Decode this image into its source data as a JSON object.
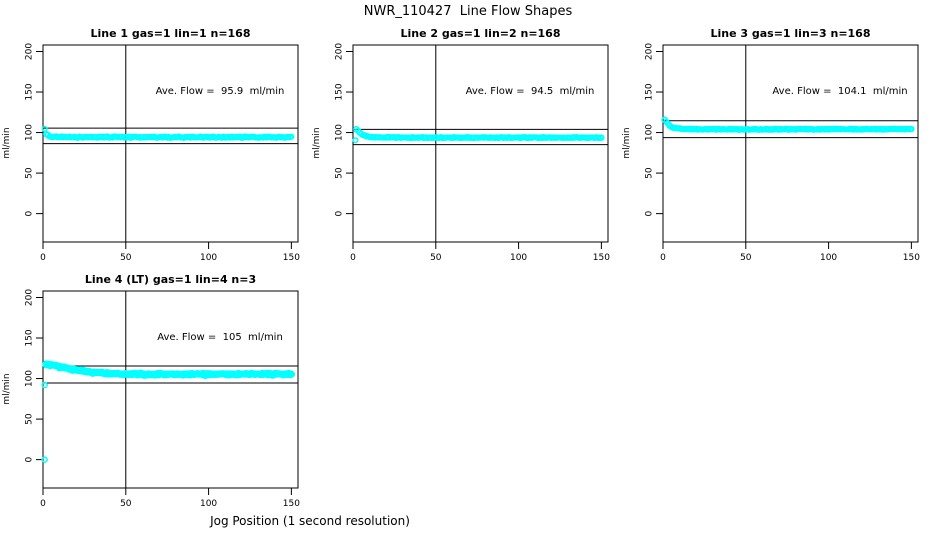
{
  "title": "NWR_110427  Line Flow Shapes",
  "xlabel": "Jog Position (1 second resolution)",
  "colors": {
    "points": "#00FFFF",
    "axis": "#000000",
    "background": "#FFFFFF"
  },
  "chart_data": [
    {
      "type": "scatter",
      "title": "Line 1 gas=1 lin=1 n=168",
      "ylabel": "ml/min",
      "annotation": "Ave. Flow =  95.9  ml/min",
      "ave_flow_ml_min": 95.9,
      "n": 168,
      "xticks": [
        0,
        50,
        100,
        150
      ],
      "yticks": [
        0,
        50,
        100,
        150,
        200
      ],
      "xlim": [
        0,
        154
      ],
      "ylim": [
        -35,
        208
      ],
      "vline_x": 50,
      "hlines": [
        105.5,
        86.3
      ],
      "outliers": [
        [
          1,
          104.5
        ]
      ],
      "series_keypoints": [
        [
          2,
          98.5
        ],
        [
          3,
          96.5
        ],
        [
          4,
          95.5
        ],
        [
          6,
          94.8
        ],
        [
          10,
          94.4
        ],
        [
          20,
          94.2
        ],
        [
          40,
          94.5
        ],
        [
          70,
          94.2
        ],
        [
          100,
          94.4
        ],
        [
          130,
          94.2
        ],
        [
          150,
          94.3
        ]
      ],
      "jitter": 0.6,
      "marker_radius": 2.3,
      "radius_jitter": 0.3,
      "x_step": 1
    },
    {
      "type": "scatter",
      "title": "Line 2 gas=1 lin=2 n=168",
      "ylabel": "ml/min",
      "annotation": "Ave. Flow =  94.5  ml/min",
      "ave_flow_ml_min": 94.5,
      "n": 168,
      "xticks": [
        0,
        50,
        100,
        150
      ],
      "yticks": [
        0,
        50,
        100,
        150,
        200
      ],
      "xlim": [
        0,
        154
      ],
      "ylim": [
        -35,
        208
      ],
      "vline_x": 50,
      "hlines": [
        104.0,
        85.1
      ],
      "outliers": [
        [
          1.5,
          90.5
        ]
      ],
      "series_keypoints": [
        [
          2,
          104.5
        ],
        [
          3,
          102.5
        ],
        [
          4,
          100.5
        ],
        [
          5,
          98.5
        ],
        [
          6,
          97
        ],
        [
          8,
          95.5
        ],
        [
          10,
          94.6
        ],
        [
          15,
          94
        ],
        [
          30,
          93.8
        ],
        [
          60,
          93.8
        ],
        [
          100,
          93.8
        ],
        [
          150,
          93.9
        ]
      ],
      "jitter": 0.4,
      "marker_radius": 2.3,
      "radius_jitter": 0.3,
      "x_step": 1
    },
    {
      "type": "scatter",
      "title": "Line 3 gas=1 lin=3 n=168",
      "ylabel": "ml/min",
      "annotation": "Ave. Flow =  104.1  ml/min",
      "ave_flow_ml_min": 104.1,
      "n": 168,
      "xticks": [
        0,
        50,
        100,
        150
      ],
      "yticks": [
        0,
        50,
        100,
        150,
        200
      ],
      "xlim": [
        0,
        154
      ],
      "ylim": [
        -35,
        208
      ],
      "vline_x": 50,
      "hlines": [
        114.5,
        93.7
      ],
      "outliers": [],
      "series_keypoints": [
        [
          1,
          116
        ],
        [
          2,
          113.5
        ],
        [
          3,
          111
        ],
        [
          4,
          108.8
        ],
        [
          5,
          107.3
        ],
        [
          7,
          105.8
        ],
        [
          10,
          104.8
        ],
        [
          15,
          104.2
        ],
        [
          30,
          104
        ],
        [
          60,
          104
        ],
        [
          100,
          104.1
        ],
        [
          150,
          104.2
        ]
      ],
      "jitter": 0.4,
      "marker_radius": 2.3,
      "radius_jitter": 0.3,
      "x_step": 1
    },
    {
      "type": "scatter",
      "title": "Line 4 (LT) gas=1 lin=4 n=3",
      "ylabel": "ml/min",
      "annotation": "Ave. Flow =  105  ml/min",
      "ave_flow_ml_min": 105,
      "n": 3,
      "xticks": [
        0,
        50,
        100,
        150
      ],
      "yticks": [
        0,
        50,
        100,
        150,
        200
      ],
      "xlim": [
        0,
        154
      ],
      "ylim": [
        -35,
        208
      ],
      "vline_x": 50,
      "hlines": [
        115.5,
        94.5
      ],
      "outliers": [
        [
          1,
          0
        ],
        [
          1,
          92
        ]
      ],
      "series_keypoints": [
        [
          2,
          117.5
        ],
        [
          4,
          117.3
        ],
        [
          6,
          116.5
        ],
        [
          9,
          115
        ],
        [
          12,
          113.5
        ],
        [
          16,
          111.8
        ],
        [
          20,
          110.3
        ],
        [
          25,
          108.8
        ],
        [
          30,
          107.8
        ],
        [
          36,
          106.9
        ],
        [
          42,
          106.3
        ],
        [
          50,
          105.8
        ],
        [
          60,
          105.4
        ],
        [
          75,
          105.2
        ],
        [
          90,
          105.3
        ],
        [
          110,
          105.2
        ],
        [
          130,
          105.4
        ],
        [
          150,
          105.8
        ]
      ],
      "jitter": 0.9,
      "marker_radius": 2.5,
      "radius_jitter": 0.8,
      "x_step": 0.8
    }
  ]
}
